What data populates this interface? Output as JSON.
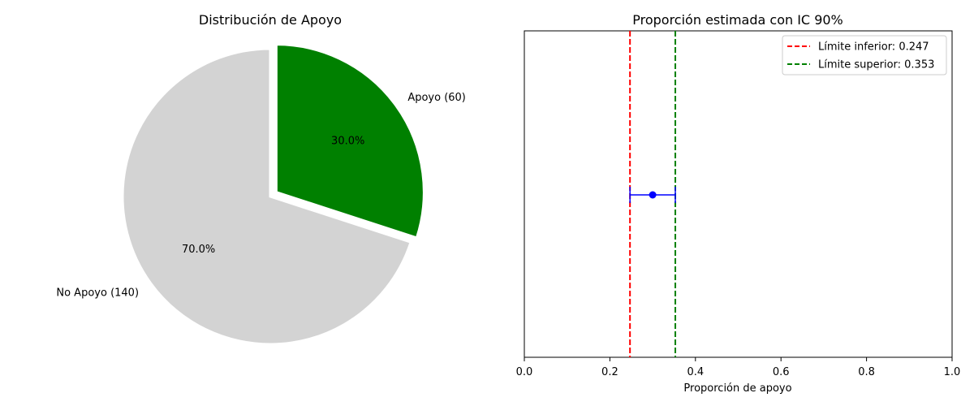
{
  "chart_data": [
    {
      "type": "pie",
      "title": "Distribución de Apoyo",
      "slices": [
        {
          "label": "Apoyo (60)",
          "value": 60,
          "pct_label": "30.0%",
          "color": "#008000",
          "exploded": true
        },
        {
          "label": "No Apoyo (140)",
          "value": 140,
          "pct_label": "70.0%",
          "color": "#d3d3d3",
          "exploded": false
        }
      ],
      "start_angle_deg": 90,
      "edge_color": "#ffffff"
    },
    {
      "type": "scatter",
      "title": "Proporción estimada con IC 90%",
      "xlabel": "Proporción de apoyo",
      "ylabel": "",
      "xlim": [
        0.0,
        1.0
      ],
      "xticks": [
        "0.0",
        "0.2",
        "0.4",
        "0.6",
        "0.8",
        "1.0"
      ],
      "yticks_visible": false,
      "grid": false,
      "point": {
        "x": 0.3,
        "y": 0,
        "xerr": [
          0.247,
          0.353
        ],
        "color": "#0000ff"
      },
      "vlines": [
        {
          "x": 0.247,
          "color": "#ff0000",
          "style": "dashed",
          "label": "Límite inferior: 0.247"
        },
        {
          "x": 0.353,
          "color": "#008000",
          "style": "dashed",
          "label": "Límite superior: 0.353"
        }
      ],
      "legend_position": "top-right"
    }
  ]
}
